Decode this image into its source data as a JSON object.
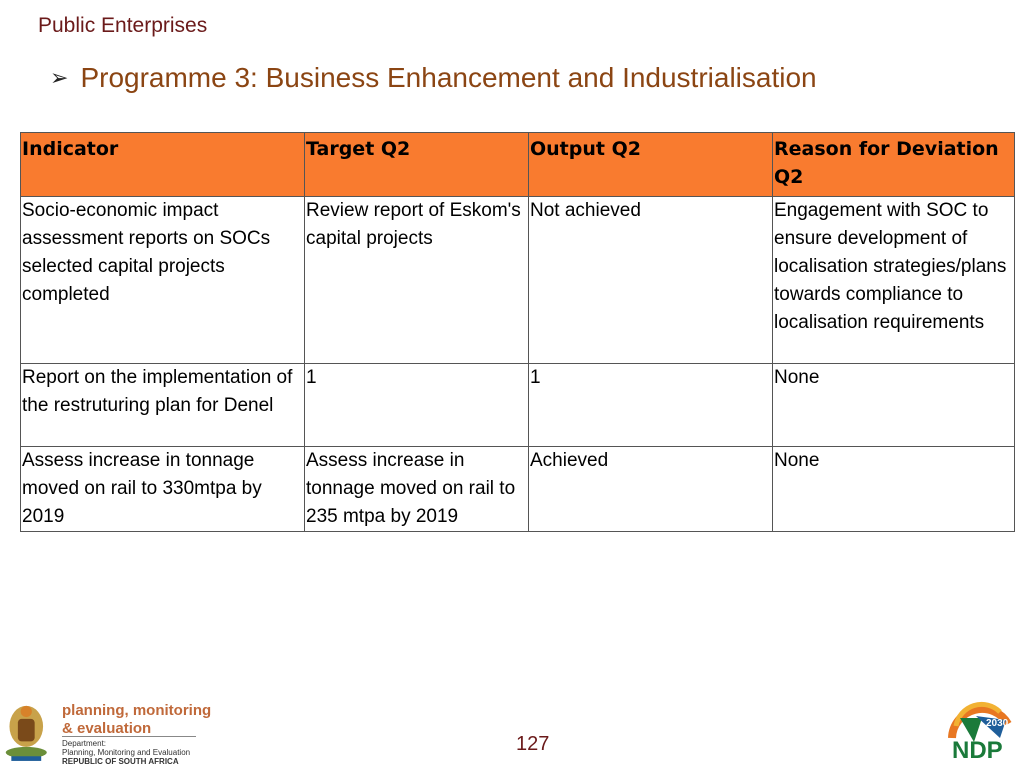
{
  "header": {
    "section": "Public Enterprises"
  },
  "slide": {
    "title": "Programme 3: Business Enhancement and Industrialisation"
  },
  "table": {
    "headers": [
      "Indicator",
      "Target Q2",
      "Output Q2",
      "Reason for Deviation Q2"
    ],
    "rows": [
      [
        "Socio-economic impact assessment reports on SOCs selected capital projects completed",
        "Review report of Eskom's capital projects",
        "Not achieved",
        "Engagement with SOC to ensure development of localisation strategies/plans towards compliance to localisation requirements"
      ],
      [
        "Report on the implementation of the restruturing plan for Denel",
        "1",
        "1",
        "None"
      ],
      [
        "Assess increase in tonnage moved on rail to 330mtpa by 2019",
        "Assess increase in tonnage moved on rail to 235 mtpa by 2019",
        "Achieved",
        "None"
      ]
    ]
  },
  "footer": {
    "logo_line1": "planning, monitoring",
    "logo_line2": "& evaluation",
    "dept_line1": "Department:",
    "dept_line2": "Planning, Monitoring and Evaluation",
    "dept_line3": "REPUBLIC OF SOUTH AFRICA",
    "page_number": "127",
    "ndp_year": "2030",
    "ndp_text": "NDP"
  },
  "colors": {
    "header_fill": "#f97b2f",
    "title": "#8b4513",
    "section": "#6b1a1a"
  }
}
